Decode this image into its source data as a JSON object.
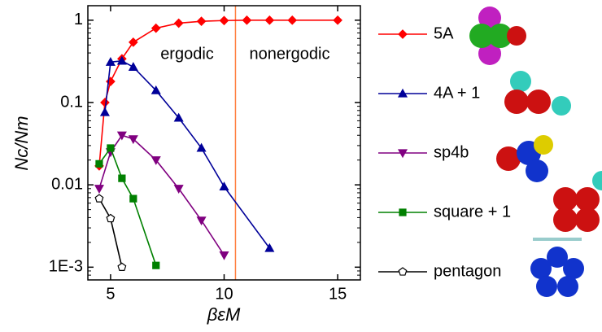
{
  "chart_data": {
    "type": "line",
    "xlabel": "βεM",
    "ylabel": "Nc/Nm",
    "xlim": [
      4,
      16
    ],
    "xticks": [
      5,
      10,
      15
    ],
    "ylim": [
      0.0007,
      1.5
    ],
    "ylog": true,
    "yticks": [
      1,
      0.1,
      0.01,
      {
        "value": 0.001,
        "label": "1E-3"
      }
    ],
    "vline": {
      "x": 10.5,
      "color": "#ff8040"
    },
    "annotations": [
      "ergodic",
      "nonergodic"
    ],
    "series": [
      {
        "name": "5A",
        "color": "#ff0000",
        "marker": "diamond",
        "x": [
          4.5,
          4.75,
          5,
          5.5,
          6,
          7,
          8,
          9,
          10,
          11,
          12,
          13,
          15
        ],
        "values": [
          0.017,
          0.1,
          0.18,
          0.34,
          0.54,
          0.8,
          0.92,
          0.97,
          0.99,
          1,
          1,
          1,
          1
        ]
      },
      {
        "name": "4A + 1",
        "color": "#000099",
        "marker": "triangle-up",
        "x": [
          4.75,
          5,
          5.5,
          6,
          7,
          8,
          9,
          10,
          12
        ],
        "values": [
          0.076,
          0.31,
          0.32,
          0.27,
          0.14,
          0.065,
          0.028,
          0.0095,
          0.0017
        ]
      },
      {
        "name": "sp4b",
        "color": "#800080",
        "marker": "triangle-down",
        "x": [
          4.5,
          5,
          5.5,
          6,
          7,
          8,
          9,
          10
        ],
        "values": [
          0.009,
          0.025,
          0.04,
          0.036,
          0.02,
          0.009,
          0.0037,
          0.0014
        ]
      },
      {
        "name": "square + 1",
        "color": "#008000",
        "marker": "square",
        "x": [
          4.5,
          5,
          5.5,
          6,
          7
        ],
        "values": [
          0.018,
          0.028,
          0.012,
          0.0068,
          0.00105
        ]
      },
      {
        "name": "pentagon",
        "color": "#000000",
        "marker": "pentagon",
        "x": [
          4.5,
          5,
          5.5
        ],
        "values": [
          0.0068,
          0.0039,
          0.001
        ]
      }
    ]
  }
}
